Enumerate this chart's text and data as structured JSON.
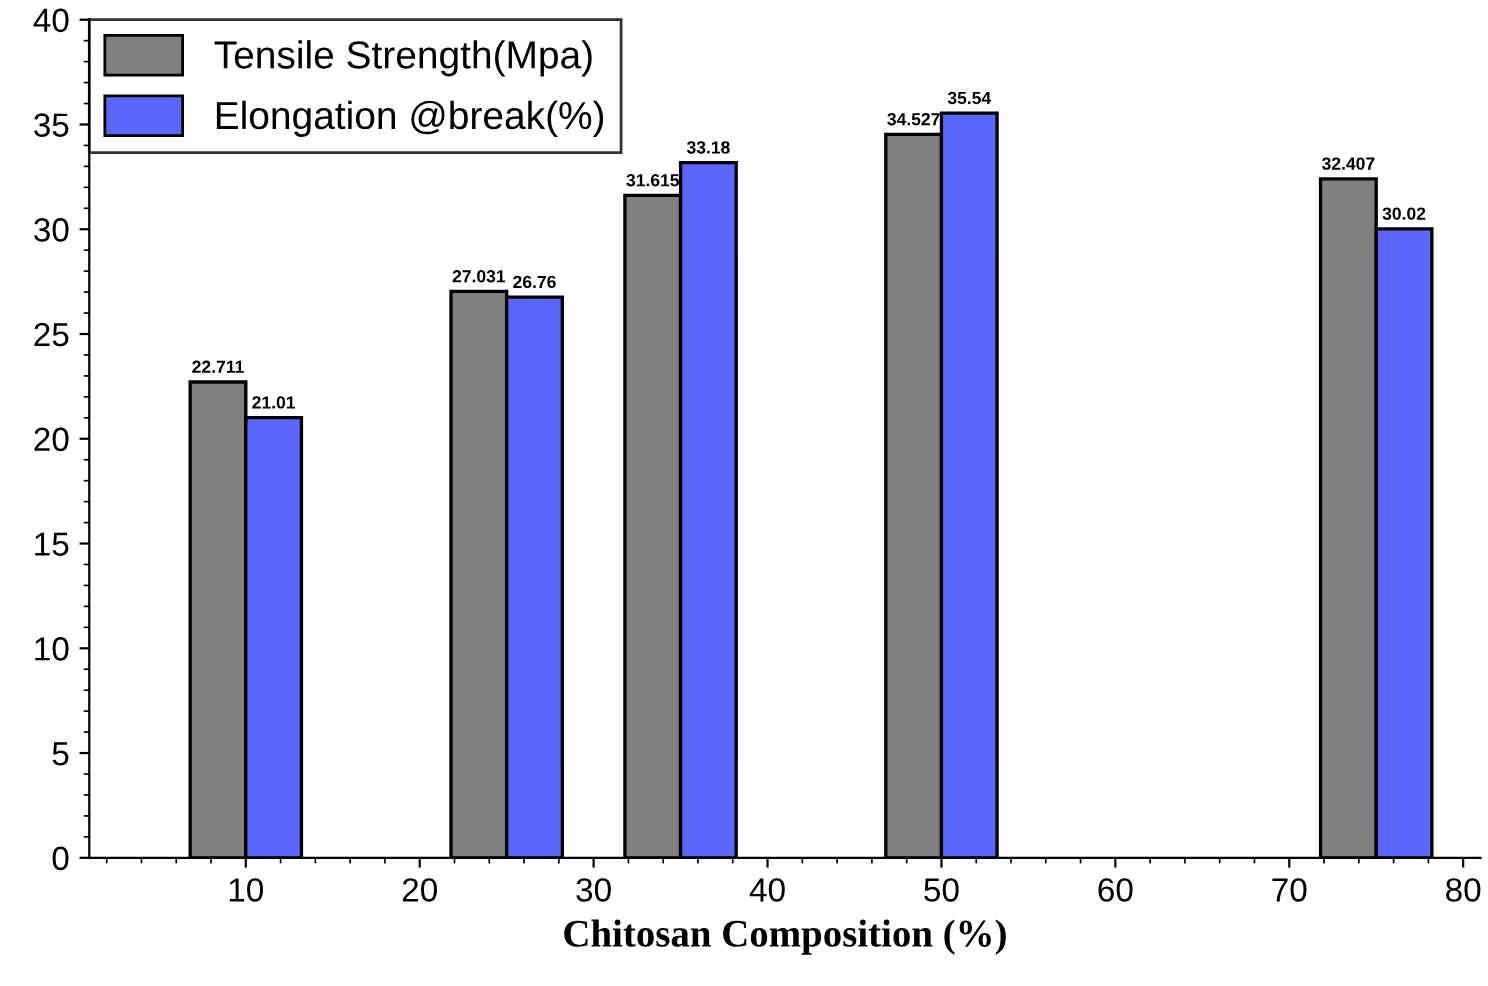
{
  "chart_data": {
    "type": "bar",
    "xlabel": "Chitosan Composition (%)",
    "x": [
      10,
      25,
      35,
      50,
      75
    ],
    "series": [
      {
        "name": "Tensile Strength(Mpa)",
        "color": "#808080",
        "values": [
          22.711,
          27.031,
          31.615,
          34.527,
          32.407
        ]
      },
      {
        "name": "Elongation @break(%)",
        "color": "#5b67fb",
        "values": [
          21.01,
          26.76,
          33.18,
          35.54,
          30.02
        ]
      }
    ],
    "xlim": [
      1,
      81
    ],
    "xticks": [
      10,
      20,
      30,
      40,
      50,
      60,
      70,
      80
    ],
    "ylim": [
      0,
      40
    ],
    "yticks": [
      0,
      5,
      10,
      15,
      20,
      25,
      30,
      35,
      40
    ],
    "data_labels": true,
    "legend": "top left"
  }
}
